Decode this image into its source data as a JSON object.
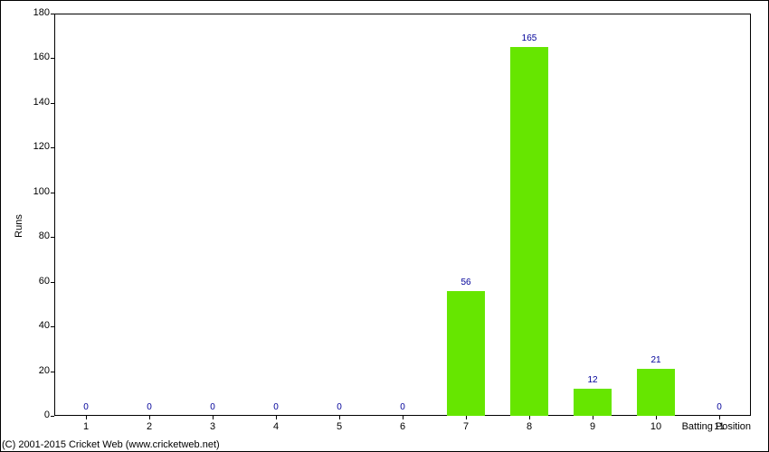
{
  "chart": {
    "type": "bar",
    "categories": [
      "1",
      "2",
      "3",
      "4",
      "5",
      "6",
      "7",
      "8",
      "9",
      "10",
      "11"
    ],
    "values": [
      0,
      0,
      0,
      0,
      0,
      0,
      56,
      165,
      12,
      21,
      0
    ],
    "bar_color": "#66e600",
    "value_label_color": "#000099",
    "value_label_fontsize": 10,
    "xlabel": "Batting Position",
    "ylabel": "Runs",
    "label_fontsize": 11,
    "ylim": [
      0,
      180
    ],
    "ytick_step": 20,
    "background_color": "#ffffff",
    "axis_color": "#000000",
    "bar_width": 0.6,
    "yticks": [
      "0",
      "20",
      "40",
      "60",
      "80",
      "100",
      "120",
      "140",
      "160",
      "180"
    ]
  },
  "copyright": "(C) 2001-2015 Cricket Web (www.cricketweb.net)"
}
